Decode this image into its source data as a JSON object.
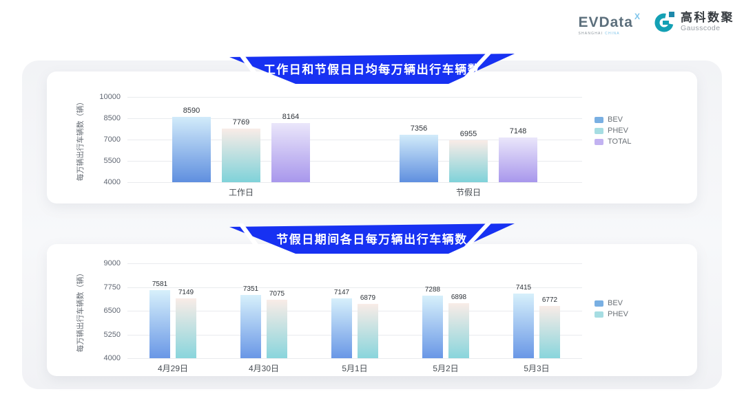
{
  "header": {
    "evdata": {
      "name": "EVData",
      "sup": "X",
      "tagline_left": "SHANGHAI",
      "tagline_right": "CHINA"
    },
    "gausscode": {
      "cn": "高科数聚",
      "en": "Gausscode",
      "icon_color": "#14a0b4",
      "icon_accent": "#1d89ab"
    }
  },
  "colors": {
    "banner_blue": "#1731f2",
    "panel_bg": "#f4f5f8",
    "gridline": "#e9ebee"
  },
  "chart_data": [
    {
      "type": "bar",
      "title": "工作日和节假日日均每万辆出行车辆数",
      "xlabel": "",
      "ylabel": "每万辆出行车辆数（辆）",
      "ylim": [
        4000,
        10000
      ],
      "yticks": [
        10000,
        8500,
        7000,
        5500,
        4000
      ],
      "grid": true,
      "legend_position": "right",
      "categories": [
        "工作日",
        "节假日"
      ],
      "series": [
        {
          "name": "BEV",
          "values": [
            8590,
            7356
          ],
          "color_top": "#d2ebfa",
          "color_bottom": "#5f8fdf",
          "legend_color": "#79afe2"
        },
        {
          "name": "PHEV",
          "values": [
            7769,
            6955
          ],
          "color_top": "#f9ece7",
          "color_bottom": "#7fd2d9",
          "legend_color": "#a6dde2"
        },
        {
          "name": "TOTAL",
          "values": [
            8164,
            7148
          ],
          "color_top": "#eae6fa",
          "color_bottom": "#a897ec",
          "legend_color": "#c2b2f1"
        }
      ]
    },
    {
      "type": "bar",
      "title": "节假日期间各日每万辆出行车辆数",
      "xlabel": "",
      "ylabel": "每万辆出行车辆数（辆）",
      "ylim": [
        4000,
        9000
      ],
      "yticks": [
        9000,
        7750,
        6500,
        5250,
        4000
      ],
      "grid": true,
      "legend_position": "right",
      "categories": [
        "4月29日",
        "4月30日",
        "5月1日",
        "5月2日",
        "5月3日"
      ],
      "series": [
        {
          "name": "BEV",
          "values": [
            7581,
            7351,
            7147,
            7288,
            7415
          ],
          "color_top": "#d7f0fb",
          "color_bottom": "#6997e6",
          "legend_color": "#79afe2"
        },
        {
          "name": "PHEV",
          "values": [
            7149,
            7075,
            6879,
            6898,
            6772
          ],
          "color_top": "#f9ece7",
          "color_bottom": "#89d5dc",
          "legend_color": "#a6dde2"
        }
      ]
    }
  ]
}
